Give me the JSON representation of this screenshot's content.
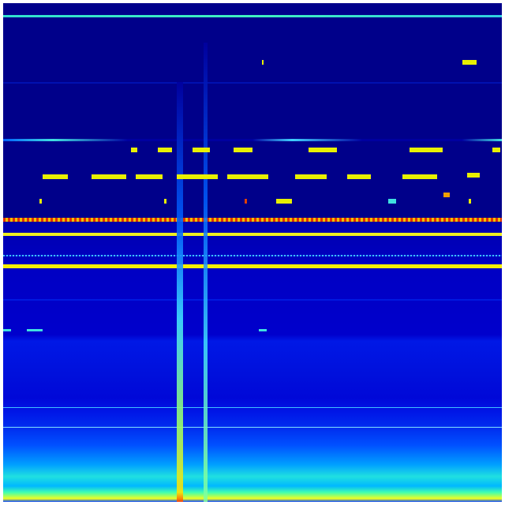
{
  "colormap": "jet",
  "colors": {
    "background_low": "#00008a",
    "mid_blue": "#0000cc",
    "cyan": "#20e0e0",
    "yellow": "#f0ff20",
    "red": "#e02000"
  }
}
